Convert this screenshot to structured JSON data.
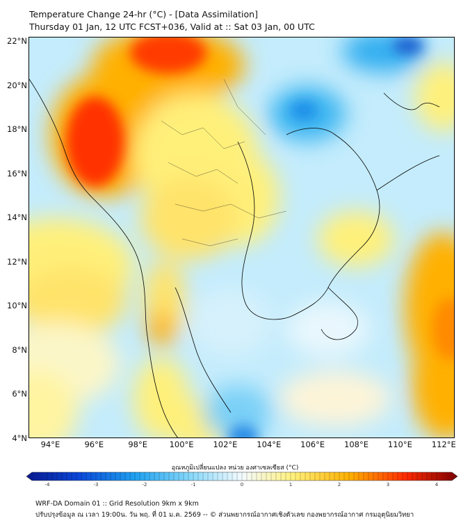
{
  "header": {
    "title_line1": "Temperature Change 24-hr (°C) - [Data Assimilation]",
    "title_line2": "Thursday 01 Jan, 12 UTC FCST+036, Valid at :: Sat 03 Jan, 00 UTC"
  },
  "map": {
    "lon_range": [
      93,
      112.5
    ],
    "lat_range": [
      4,
      22.2
    ],
    "lat_labels": [
      "22°N",
      "20°N",
      "18°N",
      "16°N",
      "14°N",
      "12°N",
      "10°N",
      "8°N",
      "6°N",
      "4°N"
    ],
    "lat_values": [
      22,
      20,
      18,
      16,
      14,
      12,
      10,
      8,
      6,
      4
    ],
    "lon_labels": [
      "94°E",
      "96°E",
      "98°E",
      "100°E",
      "102°E",
      "104°E",
      "106°E",
      "108°E",
      "110°E",
      "112°E"
    ],
    "lon_values": [
      94,
      96,
      98,
      100,
      102,
      104,
      106,
      108,
      110,
      112
    ]
  },
  "colorbar": {
    "title": "อุณหภูมิเปลี่ยนแปลง หน่วย องศาเซลเซียส (°C)",
    "range": [
      -4,
      4
    ],
    "tick_labels": [
      "-4",
      "-3",
      "-2",
      "-1",
      "0",
      "1",
      "2",
      "3",
      "4"
    ],
    "tick_values": [
      -4,
      -3,
      -2,
      -1,
      0,
      1,
      2,
      3,
      4
    ]
  },
  "footer": {
    "line1": "WRF-DA Domain 01 :: Grid Resolution 9km x 9km",
    "line2": "ปรับปรุงข้อมูล ณ เวลา 19:00น. วัน พฤ. ที่ 01 ม.ค. 2569 -- © ส่วนพยากรณ์อากาศเชิงตัวเลข กองพยากรณ์อากาศ กรมอุตุนิยมวิทยา"
  },
  "colors": {
    "strong_warm": "#ff2a00",
    "warm": "#ffb300",
    "mild_warm": "#fff27a",
    "neutral": "#f4fbff",
    "mild_cool": "#a9e2fb",
    "cool": "#31b4f3",
    "strong_cool": "#1566d6"
  }
}
